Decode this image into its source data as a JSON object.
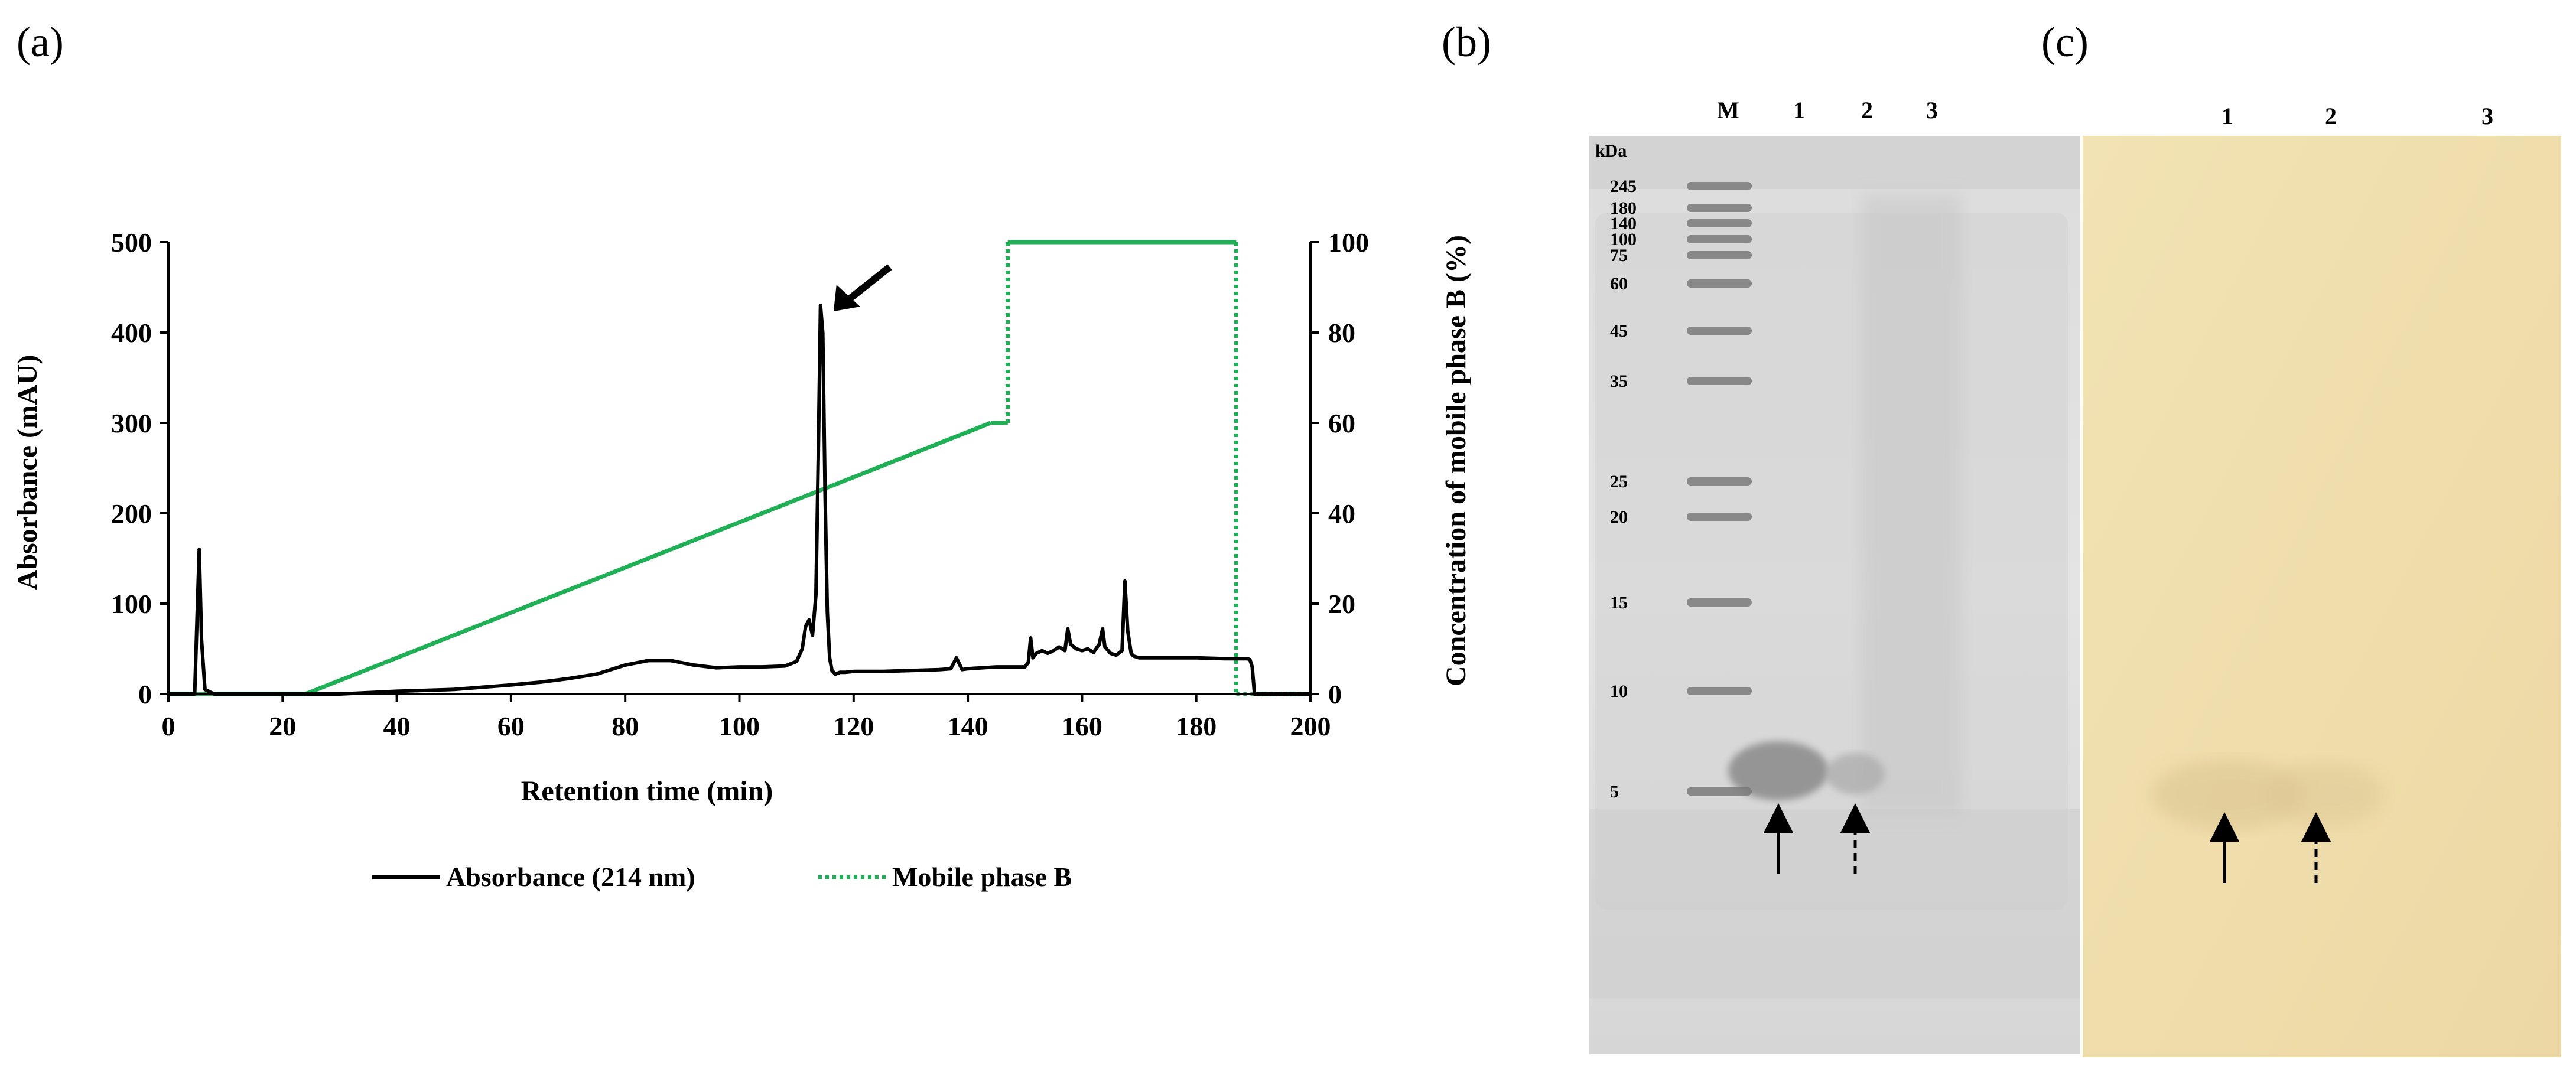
{
  "panels": {
    "a": "(a)",
    "b": "(b)",
    "c": "(c)"
  },
  "chart_data": [
    {
      "type": "line",
      "panel": "(a)",
      "xlabel": "Retention time (min)",
      "ylabel": "Absorbance (mAU)",
      "y2label": "Concentration of mobile phase B (%)",
      "xlim": [
        0,
        200
      ],
      "ylim": [
        0,
        500
      ],
      "y2lim": [
        0,
        100
      ],
      "xticks": [
        0,
        20,
        40,
        60,
        80,
        100,
        120,
        140,
        160,
        180,
        200
      ],
      "yticks": [
        0,
        100,
        200,
        300,
        400,
        500
      ],
      "y2ticks": [
        0,
        20,
        40,
        60,
        80,
        100
      ],
      "grid": false,
      "legend_position": "bottom",
      "annotations": [
        {
          "type": "arrow",
          "x": 114,
          "y": 430
        }
      ],
      "series": [
        {
          "name": "Absorbance (214 nm)",
          "axis": "left",
          "color": "#000000",
          "style": "solid",
          "x": [
            0,
            4.6,
            5.0,
            5.4,
            5.8,
            6.4,
            8,
            20,
            30,
            40,
            50,
            60,
            65,
            70,
            75,
            80,
            84,
            88,
            92,
            96,
            100,
            104,
            108,
            110,
            111,
            111.6,
            112.2,
            112.8,
            113.4,
            113.8,
            114.2,
            114.6,
            115.0,
            115.4,
            115.8,
            116.2,
            116.8,
            117.6,
            118.5,
            120,
            125,
            130,
            135,
            137,
            138,
            139,
            140,
            145,
            150,
            150.6,
            151.0,
            151.4,
            152,
            153,
            154,
            155,
            156,
            157,
            157.5,
            158,
            159,
            160,
            161,
            162,
            163,
            163.6,
            164,
            165,
            166,
            167,
            167.5,
            168,
            168.6,
            169,
            170,
            175,
            180,
            185,
            189,
            189.4,
            189.8,
            190.2,
            200
          ],
          "y": [
            0,
            0,
            80,
            160,
            60,
            5,
            0,
            0,
            0,
            3,
            5,
            10,
            13,
            17,
            22,
            32,
            37,
            37,
            32,
            29,
            30,
            30,
            31,
            36,
            50,
            75,
            82,
            65,
            110,
            260,
            430,
            400,
            220,
            90,
            40,
            26,
            22,
            24,
            24,
            25,
            25,
            26,
            27,
            28,
            40,
            27,
            28,
            30,
            30,
            35,
            62,
            40,
            45,
            48,
            45,
            48,
            52,
            48,
            72,
            55,
            50,
            48,
            50,
            46,
            55,
            72,
            52,
            45,
            43,
            48,
            125,
            70,
            45,
            42,
            40,
            40,
            40,
            39,
            39,
            38,
            30,
            0,
            0
          ]
        },
        {
          "name": "Mobile phase B",
          "axis": "right",
          "color": "#1faf55",
          "style": "solid+dotted",
          "x": [
            0,
            24,
            144,
            147,
            147,
            187,
            187,
            200
          ],
          "y": [
            0,
            0,
            60,
            60,
            100,
            100,
            0,
            0
          ],
          "dotted_x_ranges": [
            [
              147,
              147
            ],
            [
              187,
              187
            ],
            [
              187,
              200
            ]
          ]
        }
      ]
    }
  ],
  "gel_b": {
    "lanes": [
      "M",
      "1",
      "2",
      "3"
    ],
    "unit": "kDa",
    "markers": [
      "245",
      "180",
      "140",
      "100",
      "75",
      "60",
      "45",
      "35",
      "25",
      "20",
      "15",
      "10",
      "5"
    ]
  },
  "gel_c": {
    "lanes": [
      "1",
      "2",
      "3"
    ]
  }
}
